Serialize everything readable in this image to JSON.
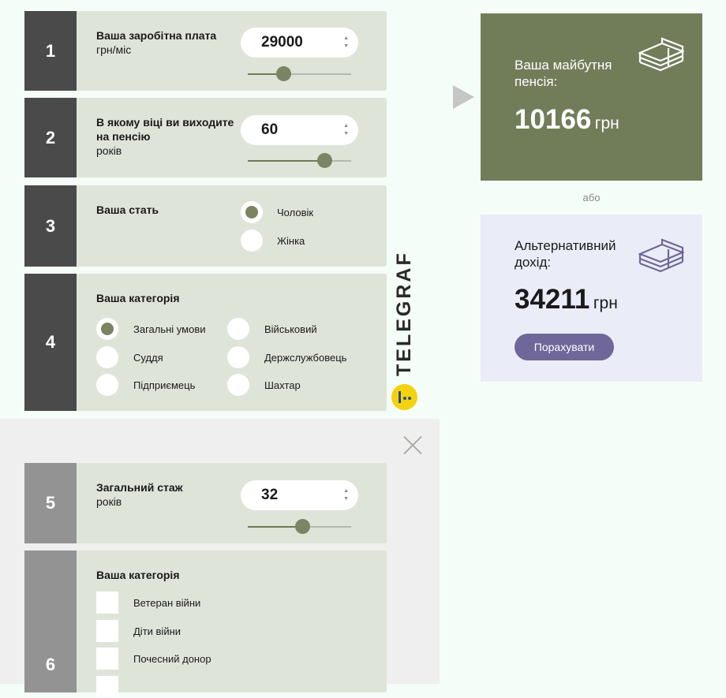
{
  "form": {
    "q1": {
      "number": "1",
      "title": "Ваша заробітна плата",
      "unit": "грн/міс",
      "value": "29000",
      "slider_fill_percent": 34
    },
    "q2": {
      "number": "2",
      "title": "В якому віці ви виходите на пенсію",
      "unit": "років",
      "value": "60",
      "slider_fill_percent": 74
    },
    "q3": {
      "number": "3",
      "title": "Ваша стать",
      "options": [
        {
          "label": "Чоловік",
          "selected": true
        },
        {
          "label": "Жінка",
          "selected": false
        }
      ]
    },
    "q4": {
      "number": "4",
      "title": "Ваша категорія",
      "options": [
        {
          "label": "Загальні умови",
          "selected": true
        },
        {
          "label": "Суддя",
          "selected": false
        },
        {
          "label": "Підприємець",
          "selected": false
        },
        {
          "label": "Військовий",
          "selected": false
        },
        {
          "label": "Держслужбовець",
          "selected": false
        },
        {
          "label": "Шахтар",
          "selected": false
        }
      ]
    },
    "q5": {
      "number": "5",
      "title": "Загальний стаж",
      "unit": "років",
      "value": "32",
      "slider_fill_percent": 53
    },
    "q6": {
      "number": "6",
      "title": "Ваша категорія",
      "options": [
        {
          "label": "Ветеран війни",
          "checked": false
        },
        {
          "label": "Діти війни",
          "checked": false
        },
        {
          "label": "Почесний донор",
          "checked": false
        }
      ]
    }
  },
  "logo": "TELEGRAF",
  "result": {
    "label": "Ваша майбутня пенсія:",
    "value": "10166",
    "currency": "грн",
    "or": "або"
  },
  "alternative": {
    "label": "Альтернативний дохід:",
    "value": "34211",
    "currency": "грн",
    "button": "Порахувати"
  },
  "colors": {
    "accent": "#717d59",
    "alt_bg": "#eaedf8",
    "button": "#6f6799"
  }
}
